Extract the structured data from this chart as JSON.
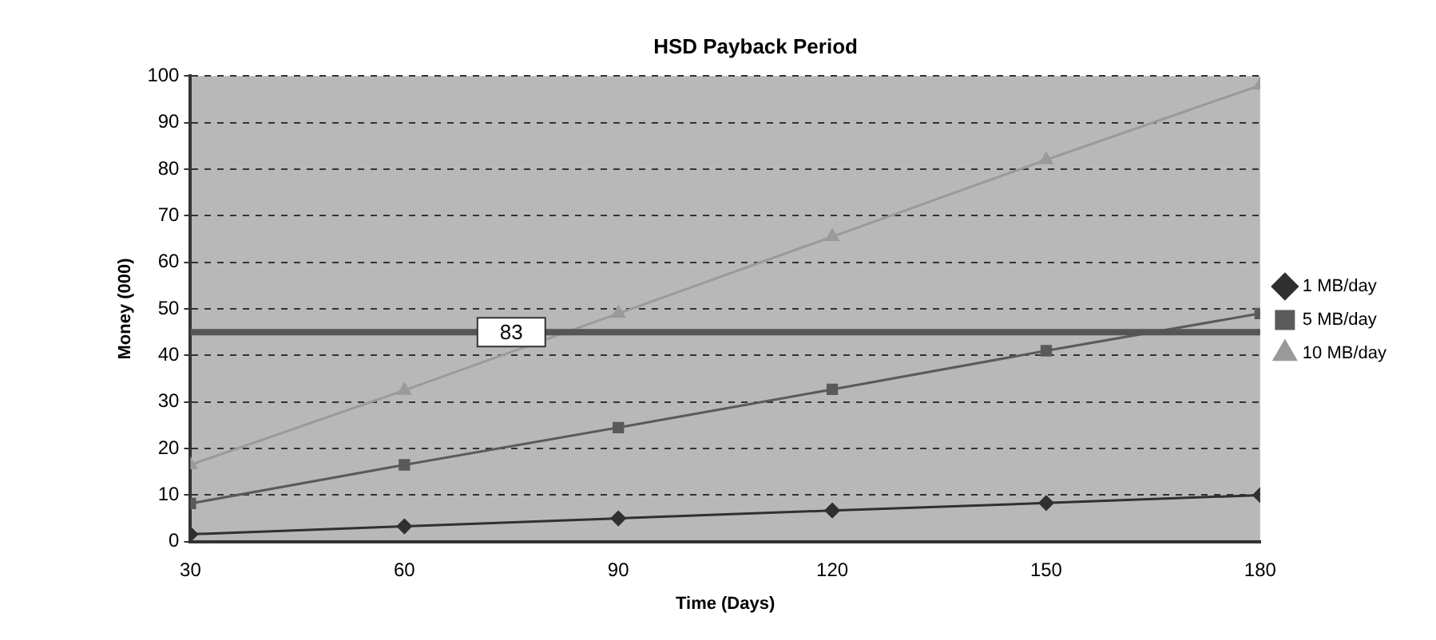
{
  "chart_data": {
    "type": "line",
    "title": "HSD Payback Period",
    "xlabel": "Time (Days)",
    "ylabel": "Money (000)",
    "x": [
      30,
      60,
      90,
      120,
      150,
      180
    ],
    "series": [
      {
        "name": "1 MB/day",
        "color": "#303030",
        "marker": "diamond",
        "values": [
          1.6,
          3.3,
          5,
          6.7,
          8.3,
          10
        ]
      },
      {
        "name": "5 MB/day",
        "color": "#5a5a5a",
        "marker": "square",
        "values": [
          8.2,
          16.5,
          24.5,
          32.7,
          41,
          49
        ]
      },
      {
        "name": "10 MB/day",
        "color": "#9a9a9a",
        "marker": "triangle",
        "values": [
          16.5,
          32.5,
          49,
          65.5,
          82,
          98
        ]
      }
    ],
    "xlim": [
      30,
      180
    ],
    "xticks": [
      30,
      60,
      90,
      120,
      150,
      180
    ],
    "ylim": [
      0,
      100
    ],
    "yticks": [
      0,
      10,
      20,
      30,
      40,
      50,
      60,
      70,
      80,
      90,
      100
    ],
    "grid": "y",
    "legend": "right",
    "ref_lines": [
      {
        "axis": "y",
        "value": 45,
        "color": "#555555"
      }
    ],
    "annotations": [
      {
        "text": "83",
        "x": 75,
        "y": 45
      }
    ]
  }
}
